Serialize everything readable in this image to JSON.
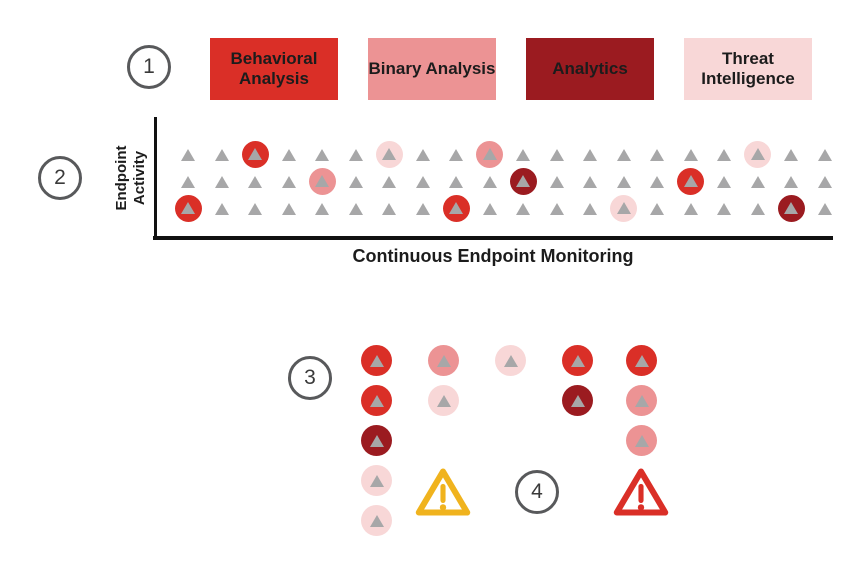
{
  "colors": {
    "red": "#da2f27",
    "pink": "#ec9394",
    "darkred": "#9b1b20",
    "lightpink": "#f8d7d7",
    "gray": "#a7a7a8",
    "axis": "#111111",
    "step_border": "#58595b",
    "warning_yellow": "#f0b31e",
    "warning_red": "#da2f27"
  },
  "steps": [
    {
      "label": "1"
    },
    {
      "label": "2"
    },
    {
      "label": "3"
    },
    {
      "label": "4"
    }
  ],
  "legend": {
    "items": [
      {
        "label": "Behavioral Analysis",
        "color_key": "red"
      },
      {
        "label": "Binary Analysis",
        "color_key": "pink"
      },
      {
        "label": "Analytics",
        "color_key": "darkred"
      },
      {
        "label": "Threat Intelligence",
        "color_key": "lightpink"
      }
    ]
  },
  "chart": {
    "y_axis_label": "Endpoint Activity",
    "x_axis_label": "Continuous Endpoint Monitoring",
    "grid": {
      "rows": 3,
      "cols": 20
    },
    "highlights": [
      {
        "row": 0,
        "col": 2,
        "color": "red"
      },
      {
        "row": 0,
        "col": 6,
        "color": "lightpink"
      },
      {
        "row": 0,
        "col": 9,
        "color": "pink"
      },
      {
        "row": 0,
        "col": 17,
        "color": "lightpink"
      },
      {
        "row": 1,
        "col": 4,
        "color": "pink"
      },
      {
        "row": 1,
        "col": 10,
        "color": "darkred"
      },
      {
        "row": 1,
        "col": 15,
        "color": "red"
      },
      {
        "row": 2,
        "col": 0,
        "color": "red"
      },
      {
        "row": 2,
        "col": 8,
        "color": "red"
      },
      {
        "row": 2,
        "col": 13,
        "color": "lightpink"
      },
      {
        "row": 2,
        "col": 18,
        "color": "darkred"
      }
    ]
  },
  "detections": {
    "columns": [
      [
        "red",
        "red",
        "darkred",
        "lightpink",
        "lightpink"
      ],
      [
        "pink",
        "lightpink"
      ],
      [
        "lightpink"
      ],
      [
        "red",
        "darkred"
      ],
      [
        "red",
        "pink",
        "pink"
      ]
    ]
  },
  "alerts": [
    {
      "name": "warning",
      "severity": "yellow"
    },
    {
      "name": "critical",
      "severity": "red"
    }
  ]
}
